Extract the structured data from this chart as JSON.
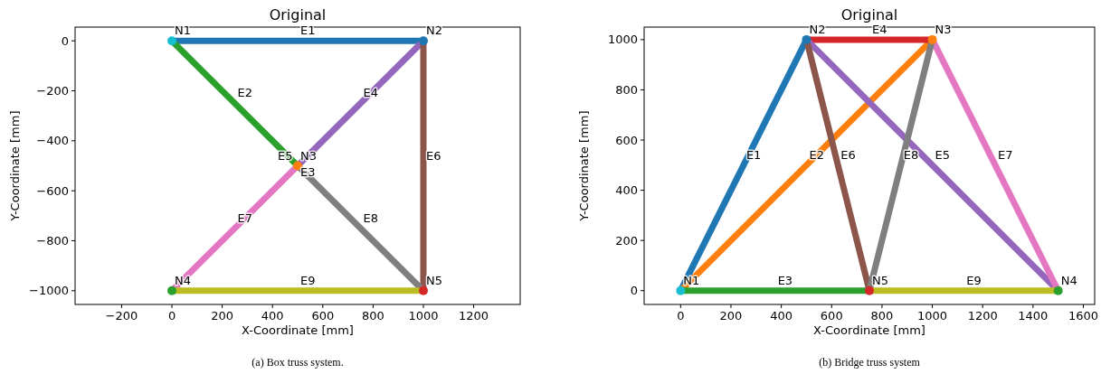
{
  "chart_data": [
    {
      "type": "line",
      "title": "Original",
      "xlabel": "X-Coordinate [mm]",
      "ylabel": "Y-Coordinate [mm]",
      "xlim": [
        -385,
        1385
      ],
      "ylim": [
        -1055,
        55
      ],
      "xticks": [
        -200,
        0,
        200,
        400,
        600,
        800,
        1000,
        1200
      ],
      "yticks": [
        -1000,
        -800,
        -600,
        -400,
        -200,
        0
      ],
      "series": [
        {
          "color": "#1f77b4",
          "x": [
            0,
            1000
          ],
          "values": [
            0,
            0
          ]
        },
        {
          "color": "#2ca02c",
          "x": [
            0,
            500
          ],
          "values": [
            0,
            -500
          ]
        },
        {
          "color": "#9467bd",
          "x": [
            500,
            1000
          ],
          "values": [
            -500,
            0
          ]
        },
        {
          "color": "#8c564b",
          "x": [
            1000,
            1000
          ],
          "values": [
            0,
            -1000
          ]
        },
        {
          "color": "#e377c2",
          "x": [
            0,
            500
          ],
          "values": [
            -1000,
            -500
          ]
        },
        {
          "color": "#7f7f7f",
          "x": [
            500,
            1000
          ],
          "values": [
            -500,
            -1000
          ]
        },
        {
          "color": "#bcbd22",
          "x": [
            0,
            1000
          ],
          "values": [
            -1000,
            -1000
          ]
        },
        {
          "type": "scatter",
          "marker": "circle",
          "colors": [
            "#17becf",
            "#1f77b4",
            "#ff7f0e",
            "#2ca02c",
            "#d62728"
          ],
          "x": [
            0,
            1000,
            500,
            0,
            1000
          ],
          "values": [
            0,
            0,
            -500,
            -1000,
            -1000
          ]
        }
      ],
      "annotations": [
        {
          "text": "N1",
          "x": 0,
          "y": 0
        },
        {
          "text": "N2",
          "x": 1000,
          "y": 0
        },
        {
          "text": "N3",
          "x": 500,
          "y": -500
        },
        {
          "text": "N4",
          "x": 0,
          "y": -1000
        },
        {
          "text": "N5",
          "x": 1000,
          "y": -1000
        },
        {
          "text": "E1",
          "x": 500,
          "y": 0
        },
        {
          "text": "E2",
          "x": 250,
          "y": -250
        },
        {
          "text": "E3",
          "x": 500,
          "y": -500
        },
        {
          "text": "E4",
          "x": 750,
          "y": -250
        },
        {
          "text": "E5",
          "x": 500,
          "y": -500
        },
        {
          "text": "E6",
          "x": 1000,
          "y": -500
        },
        {
          "text": "E7",
          "x": 250,
          "y": -750
        },
        {
          "text": "E8",
          "x": 750,
          "y": -750
        },
        {
          "text": "E9",
          "x": 500,
          "y": -1000
        },
        "(a) Box truss system."
      ]
    },
    {
      "type": "line",
      "title": "Original",
      "xlabel": "X-Coordinate [mm]",
      "ylabel": "Y-Coordinate [mm]",
      "xlim": [
        -145,
        1645
      ],
      "ylim": [
        -55,
        1050
      ],
      "xticks": [
        0,
        200,
        400,
        600,
        800,
        1000,
        1200,
        1400,
        1600
      ],
      "yticks": [
        0,
        200,
        400,
        600,
        800,
        1000
      ],
      "series": [
        {
          "color": "#1f77b4",
          "x": [
            0,
            500
          ],
          "values": [
            0,
            1000
          ]
        },
        {
          "color": "#ff7f0e",
          "x": [
            0,
            1000
          ],
          "values": [
            0,
            1000
          ]
        },
        {
          "color": "#2ca02c",
          "x": [
            0,
            750
          ],
          "values": [
            0,
            0
          ]
        },
        {
          "color": "#d62728",
          "x": [
            500,
            1000
          ],
          "values": [
            1000,
            1000
          ]
        },
        {
          "color": "#9467bd",
          "x": [
            500,
            1500
          ],
          "values": [
            1000,
            0
          ]
        },
        {
          "color": "#8c564b",
          "x": [
            500,
            750
          ],
          "values": [
            1000,
            0
          ]
        },
        {
          "color": "#e377c2",
          "x": [
            1000,
            1500
          ],
          "values": [
            1000,
            0
          ]
        },
        {
          "color": "#7f7f7f",
          "x": [
            1000,
            750
          ],
          "values": [
            1000,
            0
          ]
        },
        {
          "color": "#bcbd22",
          "x": [
            750,
            1500
          ],
          "values": [
            0,
            0
          ]
        },
        {
          "type": "scatter",
          "marker": "circle",
          "colors": [
            "#17becf",
            "#1f77b4",
            "#ff7f0e",
            "#2ca02c",
            "#d62728"
          ],
          "x": [
            0,
            500,
            1000,
            1500,
            750
          ],
          "values": [
            0,
            1000,
            1000,
            0,
            0
          ]
        }
      ],
      "annotations": [
        {
          "text": "N1",
          "x": 0,
          "y": 0
        },
        {
          "text": "N2",
          "x": 500,
          "y": 1000
        },
        {
          "text": "N3",
          "x": 1000,
          "y": 1000
        },
        {
          "text": "N4",
          "x": 1500,
          "y": 0
        },
        {
          "text": "N5",
          "x": 750,
          "y": 0
        },
        {
          "text": "E1",
          "x": 250,
          "y": 500
        },
        {
          "text": "E2",
          "x": 500,
          "y": 500
        },
        {
          "text": "E3",
          "x": 375,
          "y": 0
        },
        {
          "text": "E4",
          "x": 750,
          "y": 1000
        },
        {
          "text": "E5",
          "x": 1000,
          "y": 500
        },
        {
          "text": "E6",
          "x": 625,
          "y": 500
        },
        {
          "text": "E7",
          "x": 1250,
          "y": 500
        },
        {
          "text": "E8",
          "x": 875,
          "y": 500
        },
        {
          "text": "E9",
          "x": 1125,
          "y": 0
        },
        "(b) Bridge truss system"
      ]
    }
  ]
}
